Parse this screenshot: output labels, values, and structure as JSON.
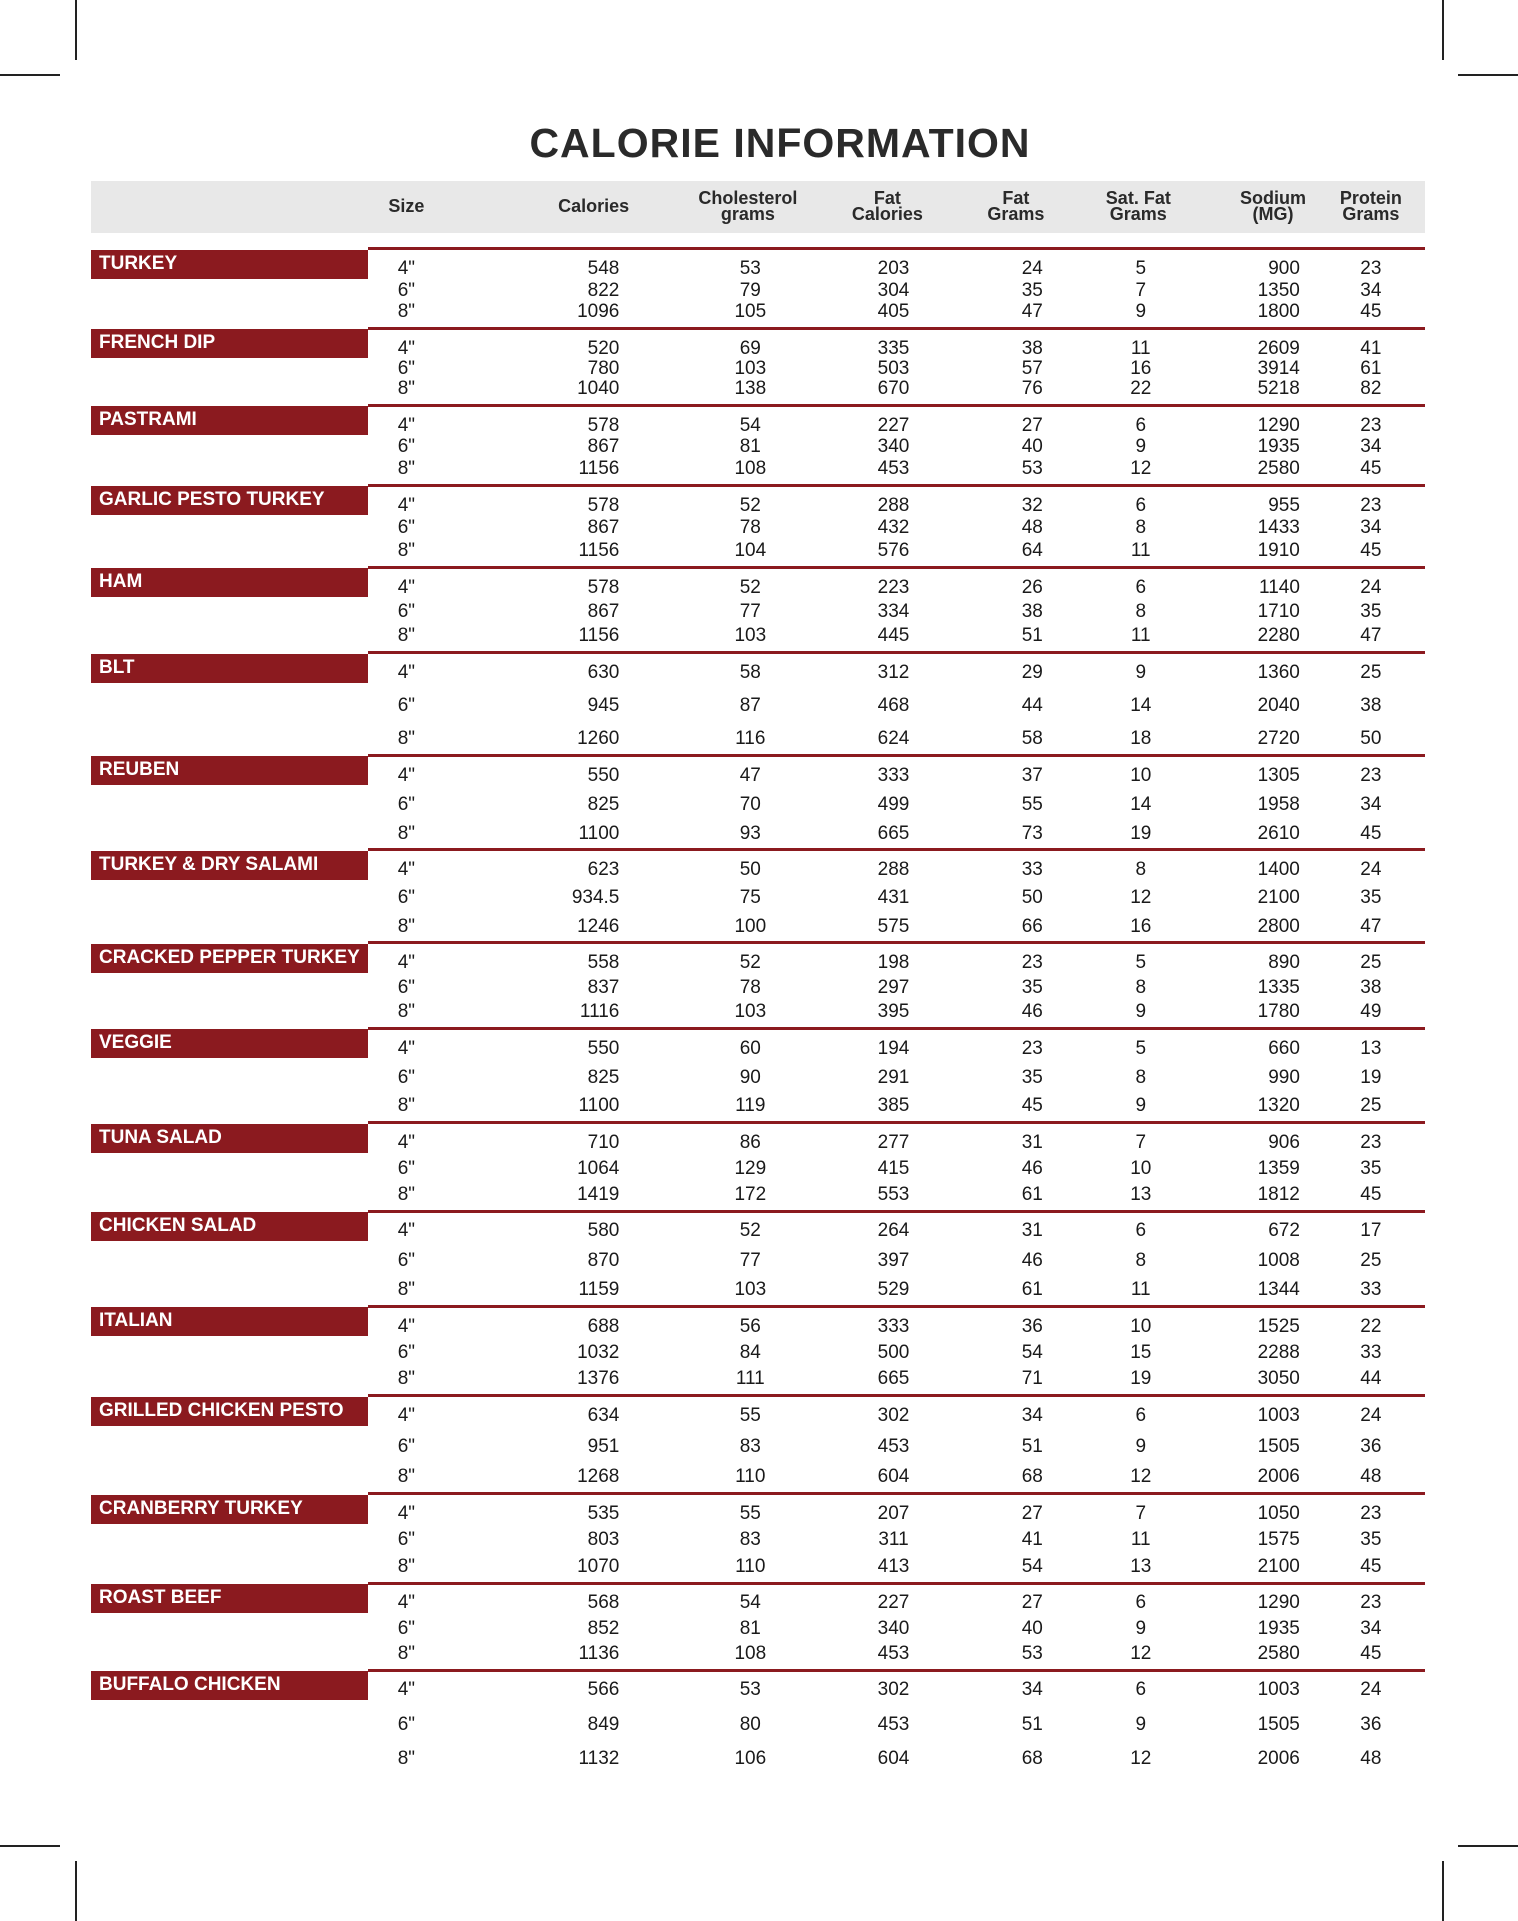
{
  "title": "CALORIE INFORMATION",
  "table": {
    "columns": [
      "Size",
      "Calories",
      "Cholesterol\ngrams",
      "Fat\nCalories",
      "Fat\nGrams",
      "Sat. Fat\nGrams",
      "Sodium\n(MG)",
      "Protein\nGrams"
    ],
    "sections": [
      {
        "name": "TURKEY",
        "rows": [
          [
            "4\"",
            "548",
            "53",
            "203",
            "24",
            "5",
            "900",
            "23"
          ],
          [
            "6\"",
            "822",
            "79",
            "304",
            "35",
            "7",
            "1350",
            "34"
          ],
          [
            "8\"",
            "1096",
            "105",
            "405",
            "47",
            "9",
            "1800",
            "45"
          ]
        ]
      },
      {
        "name": "FRENCH DIP",
        "rows": [
          [
            "4\"",
            "520",
            "69",
            "335",
            "38",
            "11",
            "2609",
            "41"
          ],
          [
            "6\"",
            "780",
            "103",
            "503",
            "57",
            "16",
            "3914",
            "61"
          ],
          [
            "8\"",
            "1040",
            "138",
            "670",
            "76",
            "22",
            "5218",
            "82"
          ]
        ]
      },
      {
        "name": "PASTRAMI",
        "rows": [
          [
            "4\"",
            "578",
            "54",
            "227",
            "27",
            "6",
            "1290",
            "23"
          ],
          [
            "6\"",
            "867",
            "81",
            "340",
            "40",
            "9",
            "1935",
            "34"
          ],
          [
            "8\"",
            "1156",
            "108",
            "453",
            "53",
            "12",
            "2580",
            "45"
          ]
        ]
      },
      {
        "name": "GARLIC PESTO TURKEY",
        "rows": [
          [
            "4\"",
            "578",
            "52",
            "288",
            "32",
            "6",
            "955",
            "23"
          ],
          [
            "6\"",
            "867",
            "78",
            "432",
            "48",
            "8",
            "1433",
            "34"
          ],
          [
            "8\"",
            "1156",
            "104",
            "576",
            "64",
            "11",
            "1910",
            "45"
          ]
        ]
      },
      {
        "name": "HAM",
        "rows": [
          [
            "4\"",
            "578",
            "52",
            "223",
            "26",
            "6",
            "1140",
            "24"
          ],
          [
            "6\"",
            "867",
            "77",
            "334",
            "38",
            "8",
            "1710",
            "35"
          ],
          [
            "8\"",
            "1156",
            "103",
            "445",
            "51",
            "11",
            "2280",
            "47"
          ]
        ]
      },
      {
        "name": "BLT",
        "rows": [
          [
            "4\"",
            "630",
            "58",
            "312",
            "29",
            "9",
            "1360",
            "25"
          ],
          [
            "6\"",
            "945",
            "87",
            "468",
            "44",
            "14",
            "2040",
            "38"
          ],
          [
            "8\"",
            "1260",
            "116",
            "624",
            "58",
            "18",
            "2720",
            "50"
          ]
        ]
      },
      {
        "name": "REUBEN",
        "rows": [
          [
            "4\"",
            "550",
            "47",
            "333",
            "37",
            "10",
            "1305",
            "23"
          ],
          [
            "6\"",
            "825",
            "70",
            "499",
            "55",
            "14",
            "1958",
            "34"
          ],
          [
            "8\"",
            "1100",
            "93",
            "665",
            "73",
            "19",
            "2610",
            "45"
          ]
        ]
      },
      {
        "name": "TURKEY & DRY SALAMI",
        "rows": [
          [
            "4\"",
            "623",
            "50",
            "288",
            "33",
            "8",
            "1400",
            "24"
          ],
          [
            "6\"",
            "934.5",
            "75",
            "431",
            "50",
            "12",
            "2100",
            "35"
          ],
          [
            "8\"",
            "1246",
            "100",
            "575",
            "66",
            "16",
            "2800",
            "47"
          ]
        ]
      },
      {
        "name": "CRACKED PEPPER TURKEY",
        "rows": [
          [
            "4\"",
            "558",
            "52",
            "198",
            "23",
            "5",
            "890",
            "25"
          ],
          [
            "6\"",
            "837",
            "78",
            "297",
            "35",
            "8",
            "1335",
            "38"
          ],
          [
            "8\"",
            "1116",
            "103",
            "395",
            "46",
            "9",
            "1780",
            "49"
          ]
        ]
      },
      {
        "name": "VEGGIE",
        "rows": [
          [
            "4\"",
            "550",
            "60",
            "194",
            "23",
            "5",
            "660",
            "13"
          ],
          [
            "6\"",
            "825",
            "90",
            "291",
            "35",
            "8",
            "990",
            "19"
          ],
          [
            "8\"",
            "1100",
            "119",
            "385",
            "45",
            "9",
            "1320",
            "25"
          ]
        ]
      },
      {
        "name": "TUNA SALAD",
        "rows": [
          [
            "4\"",
            "710",
            "86",
            "277",
            "31",
            "7",
            "906",
            "23"
          ],
          [
            "6\"",
            "1064",
            "129",
            "415",
            "46",
            "10",
            "1359",
            "35"
          ],
          [
            "8\"",
            "1419",
            "172",
            "553",
            "61",
            "13",
            "1812",
            "45"
          ]
        ]
      },
      {
        "name": "CHICKEN SALAD",
        "rows": [
          [
            "4\"",
            "580",
            "52",
            "264",
            "31",
            "6",
            "672",
            "17"
          ],
          [
            "6\"",
            "870",
            "77",
            "397",
            "46",
            "8",
            "1008",
            "25"
          ],
          [
            "8\"",
            "1159",
            "103",
            "529",
            "61",
            "11",
            "1344",
            "33"
          ]
        ]
      },
      {
        "name": "ITALIAN",
        "rows": [
          [
            "4\"",
            "688",
            "56",
            "333",
            "36",
            "10",
            "1525",
            "22"
          ],
          [
            "6\"",
            "1032",
            "84",
            "500",
            "54",
            "15",
            "2288",
            "33"
          ],
          [
            "8\"",
            "1376",
            "111",
            "665",
            "71",
            "19",
            "3050",
            "44"
          ]
        ]
      },
      {
        "name": "GRILLED CHICKEN PESTO",
        "rows": [
          [
            "4\"",
            "634",
            "55",
            "302",
            "34",
            "6",
            "1003",
            "24"
          ],
          [
            "6\"",
            "951",
            "83",
            "453",
            "51",
            "9",
            "1505",
            "36"
          ],
          [
            "8\"",
            "1268",
            "110",
            "604",
            "68",
            "12",
            "2006",
            "48"
          ]
        ]
      },
      {
        "name": "CRANBERRY TURKEY",
        "rows": [
          [
            "4\"",
            "535",
            "55",
            "207",
            "27",
            "7",
            "1050",
            "23"
          ],
          [
            "6\"",
            "803",
            "83",
            "311",
            "41",
            "11",
            "1575",
            "35"
          ],
          [
            "8\"",
            "1070",
            "110",
            "413",
            "54",
            "13",
            "2100",
            "45"
          ]
        ]
      },
      {
        "name": "ROAST BEEF",
        "rows": [
          [
            "4\"",
            "568",
            "54",
            "227",
            "27",
            "6",
            "1290",
            "23"
          ],
          [
            "6\"",
            "852",
            "81",
            "340",
            "40",
            "9",
            "1935",
            "34"
          ],
          [
            "8\"",
            "1136",
            "108",
            "453",
            "53",
            "12",
            "2580",
            "45"
          ]
        ]
      },
      {
        "name": "BUFFALO CHICKEN",
        "rows": [
          [
            "4\"",
            "566",
            "53",
            "302",
            "34",
            "6",
            "1003",
            "24"
          ],
          [
            "6\"",
            "849",
            "80",
            "453",
            "51",
            "9",
            "1505",
            "36"
          ],
          [
            "8\"",
            "1132",
            "106",
            "604",
            "68",
            "12",
            "2006",
            "48"
          ]
        ]
      }
    ]
  }
}
